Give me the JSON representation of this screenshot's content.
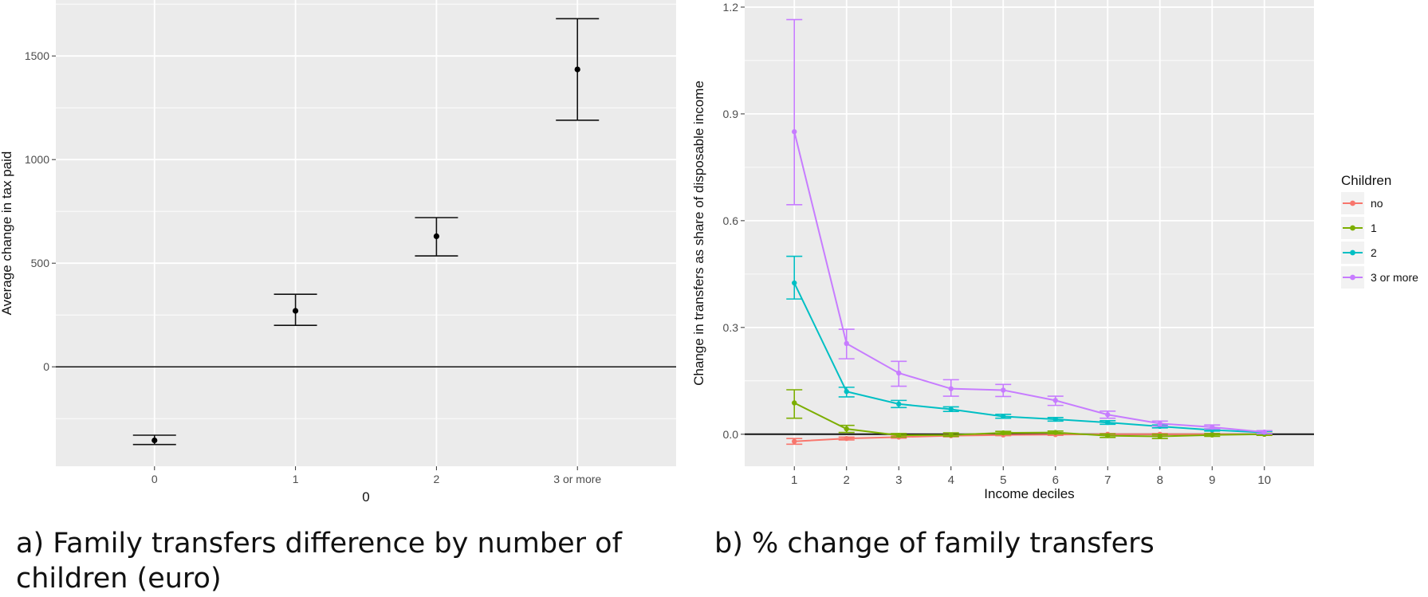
{
  "chart_data": [
    {
      "type": "scatter",
      "subtype": "errorbar",
      "caption": "a) Family transfers difference by number of children (euro)",
      "xlabel": "0",
      "ylabel": "Average change in tax paid",
      "categories": [
        "0",
        "1",
        "2",
        "3 or more"
      ],
      "series": [
        {
          "values": [
            -355,
            270,
            630,
            1435
          ],
          "lower": [
            -375,
            200,
            535,
            1190
          ],
          "upper": [
            -330,
            350,
            720,
            1680
          ]
        }
      ],
      "ylim": [
        -480,
        1770
      ],
      "yticks": [
        0,
        500,
        1000,
        1500
      ],
      "reference_line": 0,
      "grid": true,
      "colors": {
        "panel": "#ebebeb",
        "grid": "#ffffff",
        "point": "#000000"
      }
    },
    {
      "type": "line",
      "subtype": "errorbar",
      "caption": "b) % change of family transfers",
      "xlabel": "Income deciles",
      "ylabel": "Change in transfers as share of disposable income",
      "x": [
        1,
        2,
        3,
        4,
        5,
        6,
        7,
        8,
        9,
        10
      ],
      "ylim": [
        -0.09,
        1.22
      ],
      "yticks": [
        0.0,
        0.3,
        0.6,
        0.9,
        1.2
      ],
      "ytick_labels": [
        "0.0",
        "0.3",
        "0.6",
        "0.9",
        "1.2"
      ],
      "reference_line": 0,
      "grid": true,
      "legend": {
        "title": "Children",
        "position": "right"
      },
      "series": [
        {
          "name": "no",
          "color": "#f8766d",
          "values": [
            -0.02,
            -0.012,
            -0.008,
            -0.004,
            -0.002,
            -0.001,
            0.0,
            0.0,
            0.0,
            0.0
          ],
          "lower": [
            -0.028,
            -0.016,
            -0.011,
            -0.007,
            -0.004,
            -0.003,
            -0.002,
            -0.002,
            -0.002,
            -0.002
          ],
          "upper": [
            -0.012,
            -0.008,
            -0.005,
            -0.001,
            0.001,
            0.002,
            0.002,
            0.002,
            0.002,
            0.002
          ]
        },
        {
          "name": "1",
          "color": "#7cae00",
          "values": [
            0.088,
            0.015,
            -0.003,
            -0.002,
            0.004,
            0.005,
            -0.004,
            -0.006,
            -0.002,
            0.0
          ],
          "lower": [
            0.045,
            0.005,
            -0.008,
            -0.006,
            0.0,
            0.001,
            -0.009,
            -0.012,
            -0.006,
            -0.003
          ],
          "upper": [
            0.125,
            0.025,
            0.002,
            0.004,
            0.008,
            0.009,
            0.001,
            0.0,
            0.002,
            0.003
          ]
        },
        {
          "name": "2",
          "color": "#00bfc4",
          "values": [
            0.425,
            0.12,
            0.085,
            0.07,
            0.05,
            0.042,
            0.033,
            0.022,
            0.012,
            0.005
          ],
          "lower": [
            0.38,
            0.105,
            0.075,
            0.064,
            0.045,
            0.037,
            0.028,
            0.018,
            0.009,
            0.002
          ],
          "upper": [
            0.5,
            0.132,
            0.095,
            0.077,
            0.056,
            0.047,
            0.038,
            0.026,
            0.015,
            0.008
          ]
        },
        {
          "name": "3 or more",
          "color": "#c77cff",
          "values": [
            0.85,
            0.255,
            0.172,
            0.128,
            0.124,
            0.095,
            0.055,
            0.03,
            0.02,
            0.006
          ],
          "lower": [
            0.645,
            0.212,
            0.135,
            0.107,
            0.106,
            0.081,
            0.045,
            0.023,
            0.015,
            0.002
          ],
          "upper": [
            1.165,
            0.295,
            0.205,
            0.153,
            0.14,
            0.107,
            0.065,
            0.037,
            0.026,
            0.01
          ]
        }
      ]
    }
  ]
}
